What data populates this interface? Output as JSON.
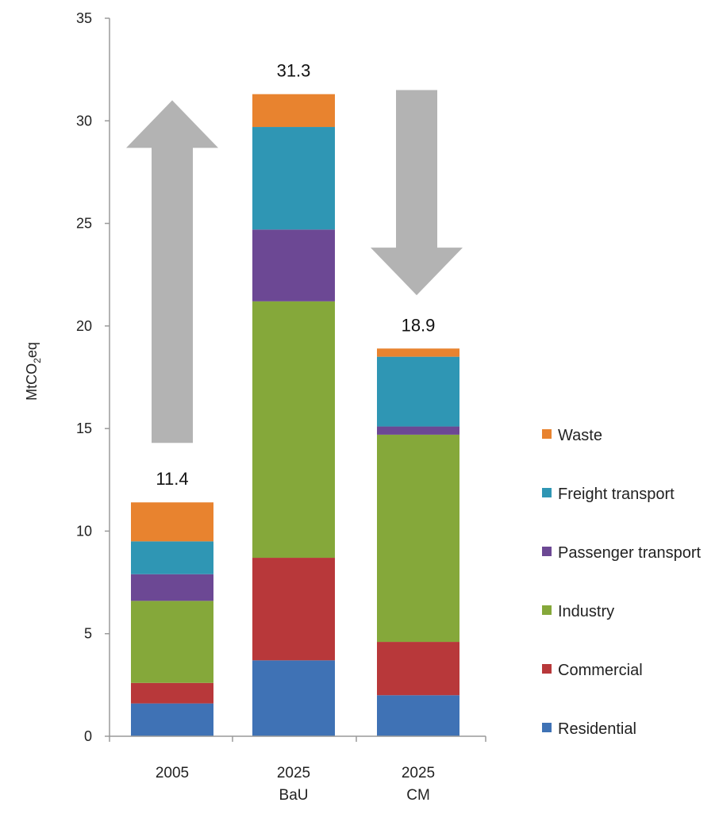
{
  "chart_data": {
    "type": "bar",
    "stacked": true,
    "categories": [
      {
        "line1": "2005",
        "line2": ""
      },
      {
        "line1": "2025",
        "line2": "BaU"
      },
      {
        "line1": "2025",
        "line2": "CM"
      }
    ],
    "ylabel_main": "MtCO",
    "ylabel_sub": "2",
    "ylabel_tail": "eq",
    "ylim": [
      0,
      35
    ],
    "yticks": [
      "0",
      "5",
      "10",
      "15",
      "20",
      "25",
      "30",
      "35"
    ],
    "grid": false,
    "legend_position": "right",
    "series": [
      {
        "name": "Residential",
        "color": "#3f72b5",
        "values": [
          1.6,
          3.7,
          2.0
        ]
      },
      {
        "name": "Commercial",
        "color": "#b8383a",
        "values": [
          1.0,
          5.0,
          2.6
        ]
      },
      {
        "name": "Industry",
        "color": "#85a83a",
        "values": [
          4.0,
          12.5,
          10.1
        ]
      },
      {
        "name": "Passenger transport",
        "color": "#6c4894",
        "values": [
          1.3,
          3.5,
          0.4
        ]
      },
      {
        "name": "Freight transport",
        "color": "#2f96b4",
        "values": [
          1.6,
          5.0,
          3.4
        ]
      },
      {
        "name": "Waste",
        "color": "#e8832f",
        "values": [
          1.9,
          1.6,
          0.4
        ]
      }
    ],
    "totals": [
      "11.4",
      "31.3",
      "18.9"
    ],
    "arrows": [
      {
        "direction": "up",
        "from_value": 14.3,
        "to_value": 31.0
      },
      {
        "direction": "down",
        "from_value": 31.5,
        "to_value": 21.5
      }
    ],
    "arrow_color": "#b3b3b3"
  }
}
